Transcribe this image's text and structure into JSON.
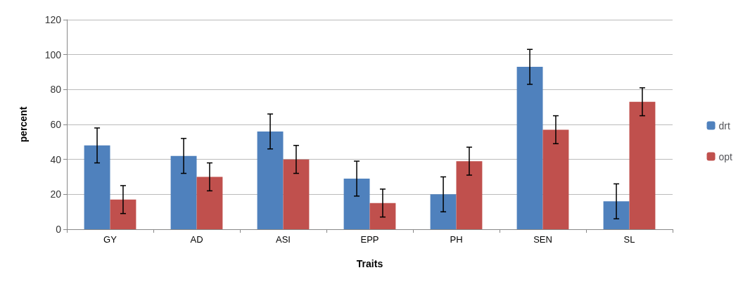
{
  "chart_data": {
    "type": "bar",
    "xlabel": "Traits",
    "ylabel": "percent",
    "categories": [
      "GY",
      "AD",
      "ASI",
      "EPP",
      "PH",
      "SEN",
      "SL"
    ],
    "series": [
      {
        "name": "drt",
        "color": "#4f81bd",
        "values": [
          48,
          42,
          56,
          29,
          20,
          93,
          16
        ],
        "errors": [
          10,
          10,
          10,
          10,
          10,
          10,
          10
        ]
      },
      {
        "name": "opt",
        "color": "#c0504d",
        "values": [
          17,
          30,
          40,
          15,
          39,
          57,
          73
        ],
        "errors": [
          8,
          8,
          8,
          8,
          8,
          8,
          8
        ]
      }
    ],
    "ylim": [
      0,
      120
    ],
    "yticks": [
      0,
      20,
      40,
      60,
      80,
      100,
      120
    ],
    "grid": "y",
    "legend": "right"
  }
}
